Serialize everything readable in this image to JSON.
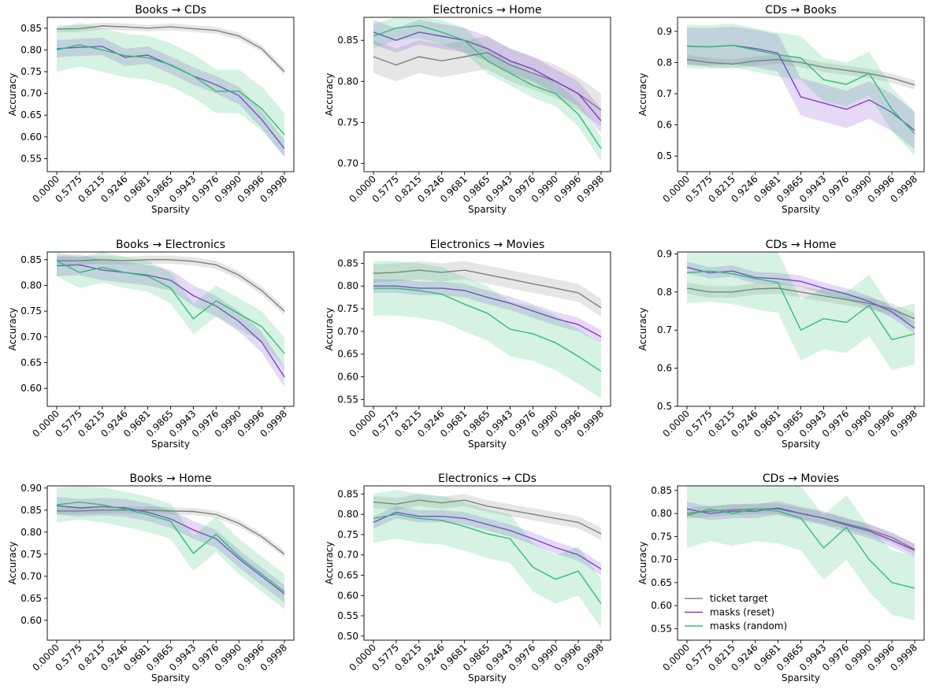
{
  "legend": {
    "placement": "lower-left (last panel)",
    "entries": [
      {
        "label": "ticket target",
        "color": "#808080"
      },
      {
        "label": "masks (reset)",
        "color": "#7f3fcf"
      },
      {
        "label": "masks (random)",
        "color": "#2fbf71"
      }
    ]
  },
  "chart_data": [
    {
      "type": "line",
      "title": "Books → CDs",
      "xlabel": "Sparsity",
      "ylabel": "Accuracy",
      "categories": [
        "0.0000",
        "0.5775",
        "0.8215",
        "0.9246",
        "0.9681",
        "0.9865",
        "0.9943",
        "0.9976",
        "0.9990",
        "0.9996",
        "0.9998"
      ],
      "ylim": [
        0.52,
        0.875
      ],
      "yticks": [
        0.55,
        0.6,
        0.65,
        0.7,
        0.75,
        0.8,
        0.85
      ],
      "yfmt": 2,
      "series": [
        {
          "name": "ticket target",
          "values": [
            0.848,
            0.849,
            0.855,
            0.853,
            0.85,
            0.853,
            0.849,
            0.845,
            0.832,
            0.803,
            0.75
          ],
          "band": 0.008
        },
        {
          "name": "masks (reset)",
          "values": [
            0.803,
            0.806,
            0.808,
            0.783,
            0.788,
            0.765,
            0.74,
            0.72,
            0.695,
            0.64,
            0.573
          ],
          "band": 0.02
        },
        {
          "name": "masks (random)",
          "values": [
            0.8,
            0.812,
            0.8,
            0.787,
            0.782,
            0.766,
            0.74,
            0.705,
            0.705,
            0.665,
            0.605
          ],
          "band": 0.05
        }
      ]
    },
    {
      "type": "line",
      "title": "Electronics → Home",
      "xlabel": "Sparsity",
      "ylabel": "Accuracy",
      "categories": [
        "0.0000",
        "0.5775",
        "0.8215",
        "0.9246",
        "0.9681",
        "0.9865",
        "0.9943",
        "0.9976",
        "0.9990",
        "0.9996",
        "0.9998"
      ],
      "ylim": [
        0.69,
        0.878
      ],
      "yticks": [
        0.7,
        0.75,
        0.8,
        0.85
      ],
      "yfmt": 2,
      "series": [
        {
          "name": "ticket target",
          "values": [
            0.83,
            0.82,
            0.83,
            0.825,
            0.83,
            0.835,
            0.82,
            0.81,
            0.8,
            0.785,
            0.765
          ],
          "band": 0.02
        },
        {
          "name": "masks (reset)",
          "values": [
            0.86,
            0.85,
            0.86,
            0.855,
            0.85,
            0.84,
            0.825,
            0.815,
            0.8,
            0.785,
            0.752
          ],
          "band": 0.015
        },
        {
          "name": "masks (random)",
          "values": [
            0.855,
            0.865,
            0.868,
            0.86,
            0.85,
            0.825,
            0.81,
            0.795,
            0.785,
            0.76,
            0.718
          ],
          "band": 0.015
        }
      ]
    },
    {
      "type": "line",
      "title": "CDs → Books",
      "xlabel": "Sparsity",
      "ylabel": "Accuracy",
      "categories": [
        "0.0000",
        "0.5775",
        "0.8215",
        "0.9246",
        "0.9681",
        "0.9865",
        "0.9943",
        "0.9976",
        "0.9990",
        "0.9996",
        "0.9998"
      ],
      "ylim": [
        0.45,
        0.945
      ],
      "yticks": [
        0.5,
        0.6,
        0.7,
        0.8,
        0.9
      ],
      "yfmt": 1,
      "series": [
        {
          "name": "ticket target",
          "values": [
            0.81,
            0.8,
            0.795,
            0.805,
            0.81,
            0.8,
            0.785,
            0.775,
            0.765,
            0.75,
            0.728
          ],
          "band": 0.015
        },
        {
          "name": "masks (reset)",
          "values": [
            0.853,
            0.85,
            0.855,
            0.845,
            0.83,
            0.69,
            0.67,
            0.65,
            0.68,
            0.64,
            0.582
          ],
          "band": 0.06
        },
        {
          "name": "masks (random)",
          "values": [
            0.852,
            0.85,
            0.855,
            0.84,
            0.825,
            0.815,
            0.745,
            0.73,
            0.765,
            0.65,
            0.572
          ],
          "band": 0.07
        }
      ]
    },
    {
      "type": "line",
      "title": "Books → Electronics",
      "xlabel": "Sparsity",
      "ylabel": "Accuracy",
      "categories": [
        "0.0000",
        "0.5775",
        "0.8215",
        "0.9246",
        "0.9681",
        "0.9865",
        "0.9943",
        "0.9976",
        "0.9990",
        "0.9996",
        "0.9998"
      ],
      "ylim": [
        0.565,
        0.865
      ],
      "yticks": [
        0.6,
        0.65,
        0.7,
        0.75,
        0.8,
        0.85
      ],
      "yfmt": 2,
      "series": [
        {
          "name": "ticket target",
          "values": [
            0.848,
            0.848,
            0.85,
            0.848,
            0.85,
            0.85,
            0.847,
            0.84,
            0.82,
            0.79,
            0.75
          ],
          "band": 0.008
        },
        {
          "name": "masks (reset)",
          "values": [
            0.838,
            0.84,
            0.83,
            0.825,
            0.82,
            0.81,
            0.78,
            0.76,
            0.73,
            0.69,
            0.622
          ],
          "band": 0.02
        },
        {
          "name": "masks (random)",
          "values": [
            0.848,
            0.825,
            0.835,
            0.825,
            0.818,
            0.795,
            0.735,
            0.77,
            0.745,
            0.72,
            0.668
          ],
          "band": 0.03
        }
      ]
    },
    {
      "type": "line",
      "title": "Electronics → Movies",
      "xlabel": "Sparsity",
      "ylabel": "Accuracy",
      "categories": [
        "0.0000",
        "0.5775",
        "0.8215",
        "0.9246",
        "0.9681",
        "0.9865",
        "0.9943",
        "0.9976",
        "0.9990",
        "0.9996",
        "0.9998"
      ],
      "ylim": [
        0.535,
        0.875
      ],
      "yticks": [
        0.55,
        0.6,
        0.65,
        0.7,
        0.75,
        0.8,
        0.85
      ],
      "yfmt": 2,
      "series": [
        {
          "name": "ticket target",
          "values": [
            0.828,
            0.83,
            0.835,
            0.83,
            0.835,
            0.825,
            0.815,
            0.805,
            0.795,
            0.785,
            0.752
          ],
          "band": 0.02
        },
        {
          "name": "masks (reset)",
          "values": [
            0.8,
            0.8,
            0.795,
            0.795,
            0.79,
            0.775,
            0.762,
            0.745,
            0.728,
            0.715,
            0.688
          ],
          "band": 0.015
        },
        {
          "name": "masks (random)",
          "values": [
            0.795,
            0.795,
            0.79,
            0.782,
            0.76,
            0.74,
            0.705,
            0.695,
            0.675,
            0.645,
            0.612
          ],
          "band": 0.06
        }
      ]
    },
    {
      "type": "line",
      "title": "CDs → Home",
      "xlabel": "Sparsity",
      "ylabel": "Accuracy",
      "categories": [
        "0.0000",
        "0.5775",
        "0.8215",
        "0.9246",
        "0.9681",
        "0.9865",
        "0.9943",
        "0.9976",
        "0.9990",
        "0.9996",
        "0.9998"
      ],
      "ylim": [
        0.5,
        0.905
      ],
      "yticks": [
        0.5,
        0.6,
        0.7,
        0.8,
        0.9
      ],
      "yfmt": 1,
      "series": [
        {
          "name": "ticket target",
          "values": [
            0.81,
            0.8,
            0.8,
            0.808,
            0.81,
            0.8,
            0.79,
            0.78,
            0.77,
            0.755,
            0.73
          ],
          "band": 0.015
        },
        {
          "name": "masks (reset)",
          "values": [
            0.865,
            0.85,
            0.855,
            0.838,
            0.835,
            0.828,
            0.81,
            0.795,
            0.775,
            0.748,
            0.705
          ],
          "band": 0.015
        },
        {
          "name": "masks (random)",
          "values": [
            0.85,
            0.855,
            0.848,
            0.835,
            0.825,
            0.7,
            0.73,
            0.72,
            0.765,
            0.675,
            0.69
          ],
          "band": 0.08
        }
      ]
    },
    {
      "type": "line",
      "title": "Books → Home",
      "xlabel": "Sparsity",
      "ylabel": "Accuracy",
      "categories": [
        "0.0000",
        "0.5775",
        "0.8215",
        "0.9246",
        "0.9681",
        "0.9865",
        "0.9943",
        "0.9976",
        "0.9990",
        "0.9996",
        "0.9998"
      ],
      "ylim": [
        0.555,
        0.905
      ],
      "yticks": [
        0.6,
        0.65,
        0.7,
        0.75,
        0.8,
        0.85,
        0.9
      ],
      "yfmt": 2,
      "series": [
        {
          "name": "ticket target",
          "values": [
            0.848,
            0.848,
            0.85,
            0.85,
            0.85,
            0.848,
            0.847,
            0.84,
            0.82,
            0.79,
            0.75
          ],
          "band": 0.008
        },
        {
          "name": "masks (reset)",
          "values": [
            0.86,
            0.855,
            0.858,
            0.855,
            0.845,
            0.83,
            0.805,
            0.785,
            0.74,
            0.7,
            0.66
          ],
          "band": 0.02
        },
        {
          "name": "masks (random)",
          "values": [
            0.862,
            0.868,
            0.862,
            0.852,
            0.84,
            0.825,
            0.752,
            0.795,
            0.745,
            0.705,
            0.665
          ],
          "band": 0.04
        }
      ]
    },
    {
      "type": "line",
      "title": "Electronics → CDs",
      "xlabel": "Sparsity",
      "ylabel": "Accuracy",
      "categories": [
        "0.0000",
        "0.5775",
        "0.8215",
        "0.9246",
        "0.9681",
        "0.9865",
        "0.9943",
        "0.9976",
        "0.9990",
        "0.9996",
        "0.9998"
      ],
      "ylim": [
        0.49,
        0.87
      ],
      "yticks": [
        0.5,
        0.55,
        0.6,
        0.65,
        0.7,
        0.75,
        0.8,
        0.85
      ],
      "yfmt": 2,
      "series": [
        {
          "name": "ticket target",
          "values": [
            0.83,
            0.825,
            0.835,
            0.828,
            0.835,
            0.82,
            0.81,
            0.8,
            0.79,
            0.78,
            0.752
          ],
          "band": 0.015
        },
        {
          "name": "masks (reset)",
          "values": [
            0.78,
            0.805,
            0.795,
            0.795,
            0.79,
            0.775,
            0.76,
            0.74,
            0.718,
            0.7,
            0.665
          ],
          "band": 0.015
        },
        {
          "name": "masks (random)",
          "values": [
            0.79,
            0.8,
            0.79,
            0.785,
            0.77,
            0.752,
            0.74,
            0.67,
            0.64,
            0.66,
            0.58
          ],
          "band": 0.06
        }
      ]
    },
    {
      "type": "line",
      "title": "CDs → Movies",
      "xlabel": "Sparsity",
      "ylabel": "Accuracy",
      "categories": [
        "0.0000",
        "0.5775",
        "0.8215",
        "0.9246",
        "0.9681",
        "0.9865",
        "0.9943",
        "0.9976",
        "0.9990",
        "0.9996",
        "0.9998"
      ],
      "ylim": [
        0.525,
        0.86
      ],
      "yticks": [
        0.55,
        0.6,
        0.65,
        0.7,
        0.75,
        0.8,
        0.85
      ],
      "yfmt": 2,
      "series": [
        {
          "name": "ticket target",
          "values": [
            0.8,
            0.805,
            0.808,
            0.81,
            0.81,
            0.8,
            0.79,
            0.778,
            0.765,
            0.748,
            0.722
          ],
          "band": 0.012
        },
        {
          "name": "masks (reset)",
          "values": [
            0.81,
            0.8,
            0.805,
            0.805,
            0.812,
            0.8,
            0.79,
            0.775,
            0.762,
            0.742,
            0.72
          ],
          "band": 0.015
        },
        {
          "name": "masks (random)",
          "values": [
            0.795,
            0.81,
            0.8,
            0.81,
            0.805,
            0.79,
            0.725,
            0.77,
            0.7,
            0.65,
            0.638
          ],
          "band": 0.07
        }
      ]
    }
  ]
}
